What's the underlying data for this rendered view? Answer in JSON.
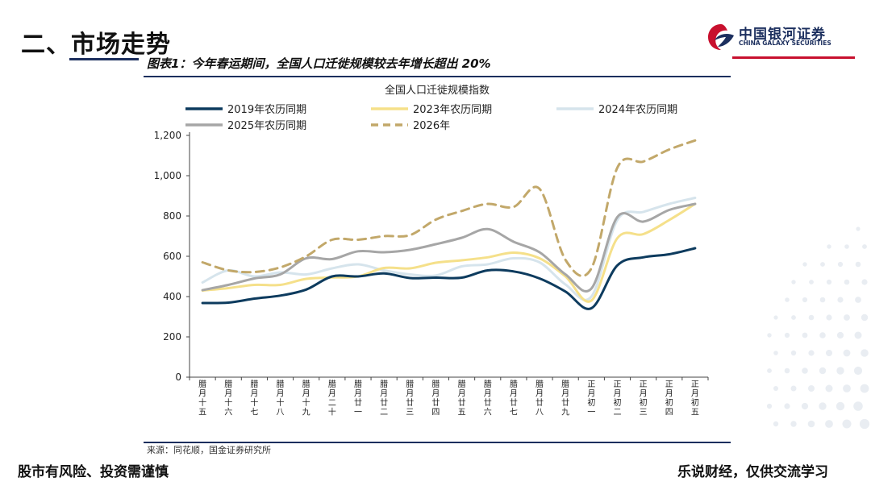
{
  "header": {
    "section_title": "二、市场走势",
    "logo_cn": "中国银河证券",
    "logo_en": "CHINA GALAXY SECURITIES"
  },
  "figure": {
    "caption": "图表1：今年春运期间，全国人口迁徙规模较去年增长超出 20%",
    "source": "来源：同花顺，国金证券研究所"
  },
  "footer": {
    "left": "股市有风险、投资需谨慎",
    "right": "乐说财经，仅供交流学习"
  },
  "colors": {
    "s2019": "#0d3b5e",
    "s2023": "#f5e08a",
    "s2024": "#d6e4ec",
    "s2025": "#a6a6a6",
    "s2026": "#c2a86a",
    "brand_navy": "#1c2f5e",
    "brand_red": "#c8102e"
  },
  "chart_data": {
    "type": "line",
    "title": "全国人口迁徙规模指数",
    "xlabel": "",
    "ylabel": "",
    "ylim": [
      0,
      1200
    ],
    "yticks": [
      0,
      200,
      400,
      600,
      800,
      1000,
      1200
    ],
    "ytick_labels": [
      "0",
      "200",
      "400",
      "600",
      "800",
      "1,000",
      "1,200"
    ],
    "categories": [
      "腊月十五",
      "腊月十六",
      "腊月十七",
      "腊月十八",
      "腊月十九",
      "腊月二十",
      "腊月廿一",
      "腊月廿二",
      "腊月廿三",
      "腊月廿四",
      "腊月廿五",
      "腊月廿六",
      "腊月廿七",
      "腊月廿八",
      "腊月廿九",
      "正月初一",
      "正月初二",
      "正月初三",
      "正月初四",
      "正月初五"
    ],
    "series": [
      {
        "name": "2019年农历同期",
        "values": [
          368,
          370,
          390,
          405,
          435,
          500,
          500,
          515,
          492,
          494,
          494,
          530,
          525,
          490,
          425,
          342,
          555,
          595,
          610,
          640
        ]
      },
      {
        "name": "2023年农历同期",
        "values": [
          430,
          442,
          458,
          458,
          488,
          495,
          500,
          542,
          540,
          568,
          580,
          595,
          618,
          590,
          500,
          380,
          690,
          710,
          780,
          860
        ]
      },
      {
        "name": "2024年农历同期",
        "values": [
          470,
          530,
          500,
          520,
          510,
          540,
          560,
          530,
          510,
          505,
          550,
          560,
          590,
          570,
          460,
          400,
          780,
          820,
          860,
          890
        ]
      },
      {
        "name": "2025年农历同期",
        "values": [
          432,
          458,
          490,
          510,
          590,
          586,
          625,
          620,
          632,
          660,
          692,
          735,
          672,
          620,
          510,
          440,
          795,
          772,
          830,
          860
        ]
      },
      {
        "name": "2026年",
        "values": [
          570,
          530,
          522,
          545,
          600,
          682,
          682,
          700,
          705,
          782,
          825,
          860,
          845,
          935,
          582,
          540,
          1040,
          1070,
          1130,
          1175
        ]
      }
    ]
  }
}
